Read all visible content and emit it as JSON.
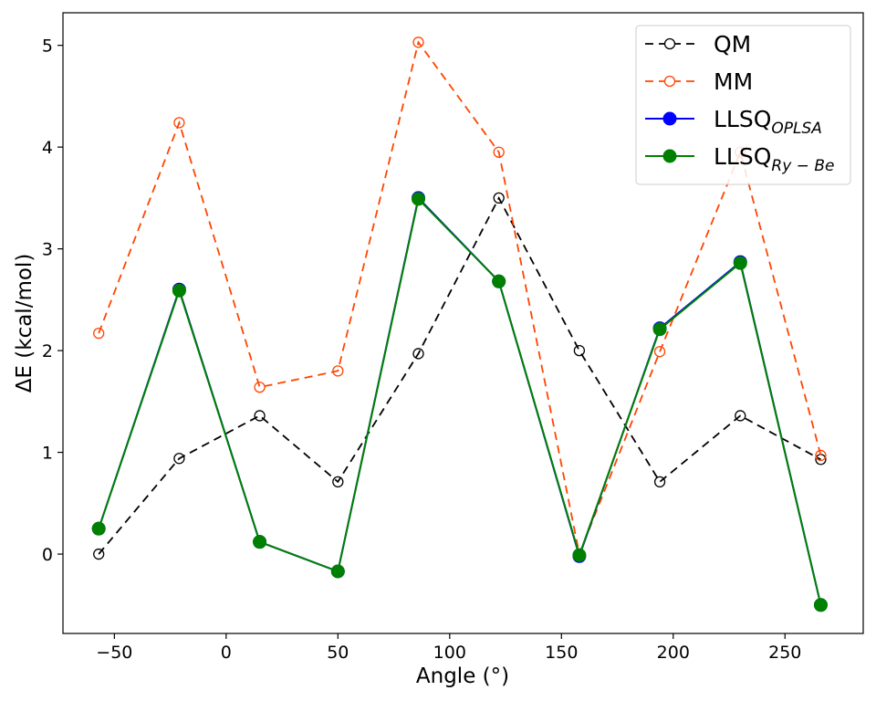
{
  "chart_data": {
    "type": "line",
    "title": "",
    "xlabel": "Angle (°)",
    "ylabel": "ΔE (kcal/mol)",
    "xlim": [
      -73,
      285
    ],
    "ylim": [
      -0.78,
      5.32
    ],
    "xticks": [
      -50,
      0,
      50,
      100,
      150,
      200,
      250
    ],
    "xtick_labels": [
      "−50",
      "0",
      "50",
      "100",
      "150",
      "200",
      "250"
    ],
    "yticks": [
      0,
      1,
      2,
      3,
      4,
      5
    ],
    "ytick_labels": [
      "0",
      "1",
      "2",
      "3",
      "4",
      "5"
    ],
    "grid": false,
    "legend_position": "top-right",
    "x": [
      -57,
      -21,
      15,
      50,
      86,
      122,
      158,
      194,
      230,
      266
    ],
    "series": [
      {
        "name": "QM",
        "legend_main": "QM",
        "legend_sub": "",
        "color": "#000000",
        "line": "dashed",
        "marker": "open-circle",
        "values": [
          0.0,
          0.94,
          1.36,
          0.71,
          1.97,
          3.5,
          2.0,
          0.71,
          1.36,
          0.93
        ]
      },
      {
        "name": "MM",
        "legend_main": "MM",
        "legend_sub": "",
        "color": "#ff4500",
        "line": "dashed",
        "marker": "open-circle",
        "values": [
          2.17,
          4.24,
          1.64,
          1.8,
          5.03,
          3.95,
          0.0,
          1.99,
          3.95,
          0.97
        ]
      },
      {
        "name": "LLSQOPLSA",
        "legend_main": "LLSQ",
        "legend_sub": "OPLSA",
        "color": "#0000ff",
        "line": "solid",
        "marker": "filled-circle",
        "values": [
          0.25,
          2.6,
          0.12,
          -0.17,
          3.5,
          2.68,
          -0.02,
          2.22,
          2.87,
          -0.5
        ]
      },
      {
        "name": "LLSQRy−Be",
        "legend_main": "LLSQ",
        "legend_sub": "Ry − Be",
        "color": "#008000",
        "line": "solid",
        "marker": "filled-circle",
        "values": [
          0.25,
          2.59,
          0.12,
          -0.17,
          3.49,
          2.68,
          -0.01,
          2.21,
          2.86,
          -0.5
        ]
      }
    ]
  }
}
